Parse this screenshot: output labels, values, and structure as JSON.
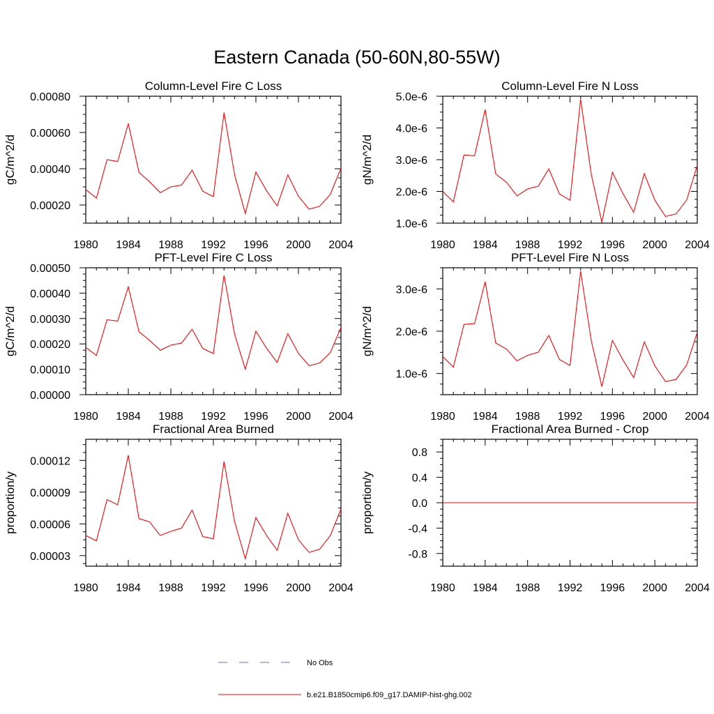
{
  "title": "Eastern Canada (50-60N,80-55W)",
  "legend": {
    "entries": [
      {
        "label": "No Obs",
        "color": "#5b6fd6",
        "dash": true
      },
      {
        "label": "b.e21.B1850cmip6.f09_g17.DAMIP-hist-ghg.002",
        "color": "#ff0000",
        "dash": false
      }
    ]
  },
  "chart_data": [
    {
      "type": "line",
      "title": "Column-Level Fire C Loss",
      "ylabel": "gC/m^2/d",
      "xlim": [
        1980,
        2004
      ],
      "ylim": [
        0.0001,
        0.0008
      ],
      "xticks": [
        1980,
        1984,
        1988,
        1992,
        1996,
        2000,
        2004
      ],
      "yticks": [
        0.0002,
        0.0004,
        0.0006,
        0.0008
      ],
      "ytick_labels": [
        "0.00020",
        "0.00040",
        "0.00060",
        "0.00080"
      ],
      "x": [
        1980,
        1981,
        1982,
        1983,
        1984,
        1985,
        1986,
        1987,
        1988,
        1989,
        1990,
        1991,
        1992,
        1993,
        1994,
        1995,
        1996,
        1997,
        1998,
        1999,
        2000,
        2001,
        2002,
        2003,
        2004
      ],
      "series": [
        {
          "name": "b.e21.B1850cmip6.f09_g17.DAMIP-hist-ghg.002",
          "color": "#ff0000",
          "values": [
            0.000285,
            0.000238,
            0.00045,
            0.00044,
            0.00065,
            0.00038,
            0.000328,
            0.000268,
            0.0003,
            0.00031,
            0.000392,
            0.000276,
            0.000246,
            0.00071,
            0.000366,
            0.000153,
            0.000382,
            0.000278,
            0.000195,
            0.000366,
            0.000248,
            0.000177,
            0.000193,
            0.000259,
            0.000404
          ]
        }
      ]
    },
    {
      "type": "line",
      "title": "Column-Level Fire N Loss",
      "ylabel": "gN/m^2/d",
      "xlim": [
        1980,
        2004
      ],
      "ylim": [
        1e-06,
        5e-06
      ],
      "xticks": [
        1980,
        1984,
        1988,
        1992,
        1996,
        2000,
        2004
      ],
      "yticks": [
        1e-06,
        2e-06,
        3e-06,
        4e-06,
        5e-06
      ],
      "ytick_labels": [
        "1.0e-6",
        "2.0e-6",
        "3.0e-6",
        "4.0e-6",
        "5.0e-6"
      ],
      "x": [
        1980,
        1981,
        1982,
        1983,
        1984,
        1985,
        1986,
        1987,
        1988,
        1989,
        1990,
        1991,
        1992,
        1993,
        1994,
        1995,
        1996,
        1997,
        1998,
        1999,
        2000,
        2001,
        2002,
        2003,
        2004
      ],
      "series": [
        {
          "name": "b.e21.B1850cmip6.f09_g17.DAMIP-hist-ghg.002",
          "color": "#ff0000",
          "values": [
            2e-06,
            1.67e-06,
            3.15e-06,
            3.12e-06,
            4.58e-06,
            2.55e-06,
            2.29e-06,
            1.86e-06,
            2.08e-06,
            2.16e-06,
            2.71e-06,
            1.92e-06,
            1.72e-06,
            4.9e-06,
            2.55e-06,
            1.03e-06,
            2.6e-06,
            1.93e-06,
            1.34e-06,
            2.56e-06,
            1.72e-06,
            1.21e-06,
            1.29e-06,
            1.73e-06,
            2.82e-06
          ]
        }
      ]
    },
    {
      "type": "line",
      "title": "PFT-Level Fire C Loss",
      "ylabel": "gC/m^2/d",
      "xlim": [
        1980,
        2004
      ],
      "ylim": [
        0.0,
        0.0005
      ],
      "xticks": [
        1980,
        1984,
        1988,
        1992,
        1996,
        2000,
        2004
      ],
      "yticks": [
        0.0,
        0.0001,
        0.0002,
        0.0003,
        0.0004,
        0.0005
      ],
      "ytick_labels": [
        "0.00000",
        "0.00010",
        "0.00020",
        "0.00030",
        "0.00040",
        "0.00050"
      ],
      "x": [
        1980,
        1981,
        1982,
        1983,
        1984,
        1985,
        1986,
        1987,
        1988,
        1989,
        1990,
        1991,
        1992,
        1993,
        1994,
        1995,
        1996,
        1997,
        1998,
        1999,
        2000,
        2001,
        2002,
        2003,
        2004
      ],
      "series": [
        {
          "name": "b.e21.B1850cmip6.f09_g17.DAMIP-hist-ghg.002",
          "color": "#ff0000",
          "values": [
            0.000186,
            0.000155,
            0.000295,
            0.00029,
            0.000425,
            0.000248,
            0.000214,
            0.000175,
            0.000195,
            0.000203,
            0.000258,
            0.000182,
            0.000162,
            0.00047,
            0.000238,
            0.0001,
            0.00025,
            0.000183,
            0.000127,
            0.00024,
            0.000163,
            0.000114,
            0.000125,
            0.000166,
            0.000265
          ]
        }
      ]
    },
    {
      "type": "line",
      "title": "PFT-Level Fire N Loss",
      "ylabel": "gN/m^2/d",
      "xlim": [
        1980,
        2004
      ],
      "ylim": [
        5e-07,
        3.5e-06
      ],
      "xticks": [
        1980,
        1984,
        1988,
        1992,
        1996,
        2000,
        2004
      ],
      "yticks": [
        1e-06,
        2e-06,
        3e-06
      ],
      "ytick_labels": [
        "1.0e-6",
        "2.0e-6",
        "3.0e-6"
      ],
      "x": [
        1980,
        1981,
        1982,
        1983,
        1984,
        1985,
        1986,
        1987,
        1988,
        1989,
        1990,
        1991,
        1992,
        1993,
        1994,
        1995,
        1996,
        1997,
        1998,
        1999,
        2000,
        2001,
        2002,
        2003,
        2004
      ],
      "series": [
        {
          "name": "b.e21.B1850cmip6.f09_g17.DAMIP-hist-ghg.002",
          "color": "#ff0000",
          "values": [
            1.4e-06,
            1.15e-06,
            2.16e-06,
            2.18e-06,
            3.17e-06,
            1.72e-06,
            1.58e-06,
            1.3e-06,
            1.43e-06,
            1.5e-06,
            1.9e-06,
            1.33e-06,
            1.19e-06,
            3.42e-06,
            1.78e-06,
            6.9e-07,
            1.78e-06,
            1.32e-06,
            9e-07,
            1.75e-06,
            1.18e-06,
            8.1e-07,
            8.6e-07,
            1.2e-06,
            1.97e-06
          ]
        }
      ]
    },
    {
      "type": "line",
      "title": "Fractional Area Burned",
      "ylabel": "proportion/y",
      "xlim": [
        1980,
        2004
      ],
      "ylim": [
        2e-05,
        0.00014
      ],
      "xticks": [
        1980,
        1984,
        1988,
        1992,
        1996,
        2000,
        2004
      ],
      "yticks": [
        3e-05,
        6e-05,
        9e-05,
        0.00012
      ],
      "ytick_labels": [
        "0.00003",
        "0.00006",
        "0.00009",
        "0.00012"
      ],
      "x": [
        1980,
        1981,
        1982,
        1983,
        1984,
        1985,
        1986,
        1987,
        1988,
        1989,
        1990,
        1991,
        1992,
        1993,
        1994,
        1995,
        1996,
        1997,
        1998,
        1999,
        2000,
        2001,
        2002,
        2003,
        2004
      ],
      "series": [
        {
          "name": "b.e21.B1850cmip6.f09_g17.DAMIP-hist-ghg.002",
          "color": "#ff0000",
          "values": [
            4.9e-05,
            4.4e-05,
            8.3e-05,
            7.8e-05,
            0.000125,
            6.5e-05,
            6.2e-05,
            4.9e-05,
            5.3e-05,
            5.6e-05,
            7.3e-05,
            4.8e-05,
            4.6e-05,
            0.000119,
            6.2e-05,
            2.7e-05,
            6.6e-05,
            4.9e-05,
            3.5e-05,
            7e-05,
            4.5e-05,
            3.3e-05,
            3.6e-05,
            4.9e-05,
            7.4e-05
          ]
        }
      ]
    },
    {
      "type": "line",
      "title": "Fractional Area Burned - Crop",
      "ylabel": "proportion/y",
      "xlim": [
        1980,
        2004
      ],
      "ylim": [
        -1.0,
        1.0
      ],
      "xticks": [
        1980,
        1984,
        1988,
        1992,
        1996,
        2000,
        2004
      ],
      "yticks": [
        -0.8,
        -0.4,
        0.0,
        0.4,
        0.8
      ],
      "ytick_labels": [
        "-0.8",
        "-0.4",
        "0.0",
        "0.4",
        "0.8"
      ],
      "x": [
        1980,
        1981,
        1982,
        1983,
        1984,
        1985,
        1986,
        1987,
        1988,
        1989,
        1990,
        1991,
        1992,
        1993,
        1994,
        1995,
        1996,
        1997,
        1998,
        1999,
        2000,
        2001,
        2002,
        2003,
        2004
      ],
      "series": [
        {
          "name": "b.e21.B1850cmip6.f09_g17.DAMIP-hist-ghg.002",
          "color": "#ff0000",
          "values": [
            0,
            0,
            0,
            0,
            0,
            0,
            0,
            0,
            0,
            0,
            0,
            0,
            0,
            0,
            0,
            0,
            0,
            0,
            0,
            0,
            0,
            0,
            0,
            0,
            0
          ]
        }
      ]
    }
  ]
}
